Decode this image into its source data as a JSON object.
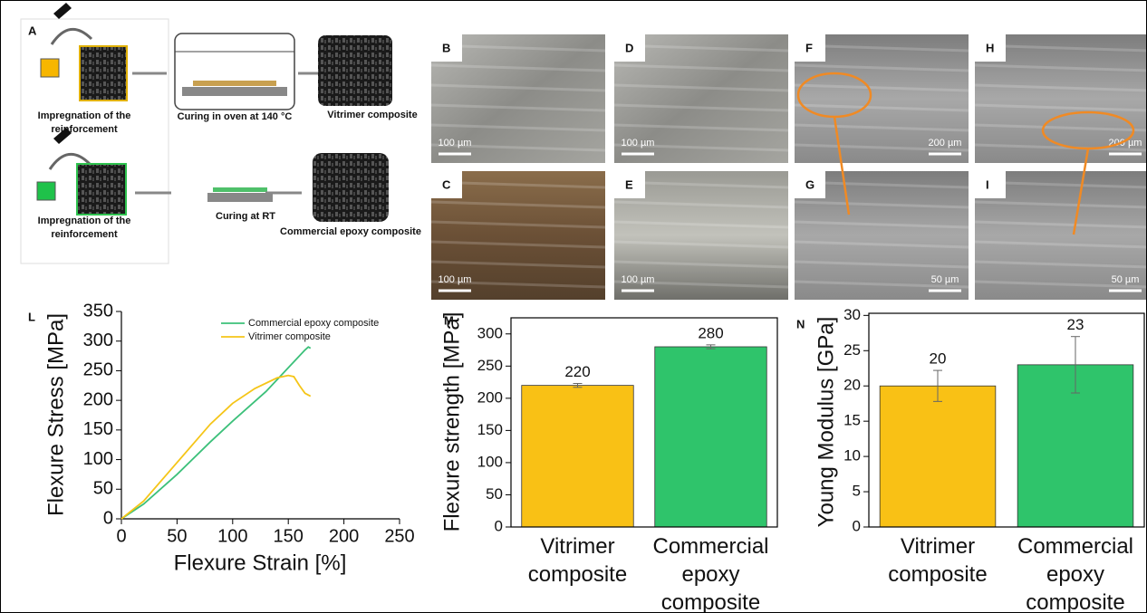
{
  "schematic": {
    "label": "A",
    "rows": [
      {
        "impregnation": "Impregnation of the reinforcement",
        "curing": "Curing in oven at 140 °C",
        "product": "Vitrimer composite"
      },
      {
        "impregnation": "Impregnation of the reinforcement",
        "curing": "Curing at RT",
        "product": "Commercial epoxy composite"
      }
    ]
  },
  "micrographs": [
    {
      "label": "B",
      "scale": "100 µm"
    },
    {
      "label": "C",
      "scale": "100 µm"
    },
    {
      "label": "D",
      "scale": "100 µm"
    },
    {
      "label": "E",
      "scale": "100 µm"
    },
    {
      "label": "F",
      "scale": "200 µm"
    },
    {
      "label": "G",
      "scale": "50 µm"
    },
    {
      "label": "H",
      "scale": "200 µm"
    },
    {
      "label": "I",
      "scale": "50 µm"
    }
  ],
  "chart_data": [
    {
      "type": "line",
      "label": "L",
      "x_label": "Flexure Strain [%]",
      "y_label": "Flexure Stress [MPa]",
      "xlim": [
        0,
        250
      ],
      "xticks": [
        0,
        50,
        100,
        150,
        200,
        250
      ],
      "ylim": [
        0,
        350
      ],
      "yticks": [
        0,
        50,
        100,
        150,
        200,
        250,
        300,
        350
      ],
      "series": [
        {
          "name": "Commercial epoxy composite",
          "color": "#3cc07a",
          "x": [
            0,
            20,
            50,
            80,
            100,
            130,
            150,
            165,
            168,
            170
          ],
          "values": [
            0,
            25,
            75,
            130,
            165,
            215,
            255,
            285,
            290,
            288
          ]
        },
        {
          "name": "Vitrimer composite",
          "color": "#f5c518",
          "x": [
            0,
            20,
            50,
            80,
            100,
            120,
            140,
            150,
            155,
            160,
            165,
            170
          ],
          "values": [
            0,
            30,
            95,
            160,
            195,
            220,
            238,
            242,
            240,
            225,
            212,
            207
          ]
        }
      ]
    },
    {
      "type": "bar",
      "label": "M",
      "y_label": "Flexure strength [MPa]",
      "categories": [
        "Vitrimer composite",
        "Commercial epoxy composite"
      ],
      "values": [
        220,
        280
      ],
      "errors": [
        3,
        3
      ],
      "colors": [
        "#f9c115",
        "#2fc46b"
      ],
      "ylim": [
        0,
        325
      ],
      "yticks": [
        0,
        50,
        100,
        150,
        200,
        250,
        300
      ]
    },
    {
      "type": "bar",
      "label": "N",
      "y_label": "Young Modulus [GPa]",
      "categories": [
        "Vitrimer composite",
        "Commercial epoxy composite"
      ],
      "values": [
        20,
        23
      ],
      "errors": [
        2.2,
        4
      ],
      "colors": [
        "#f9c115",
        "#2fc46b"
      ],
      "ylim": [
        0,
        30.3
      ],
      "yticks": [
        0,
        5,
        10,
        15,
        20,
        25,
        30
      ]
    }
  ]
}
